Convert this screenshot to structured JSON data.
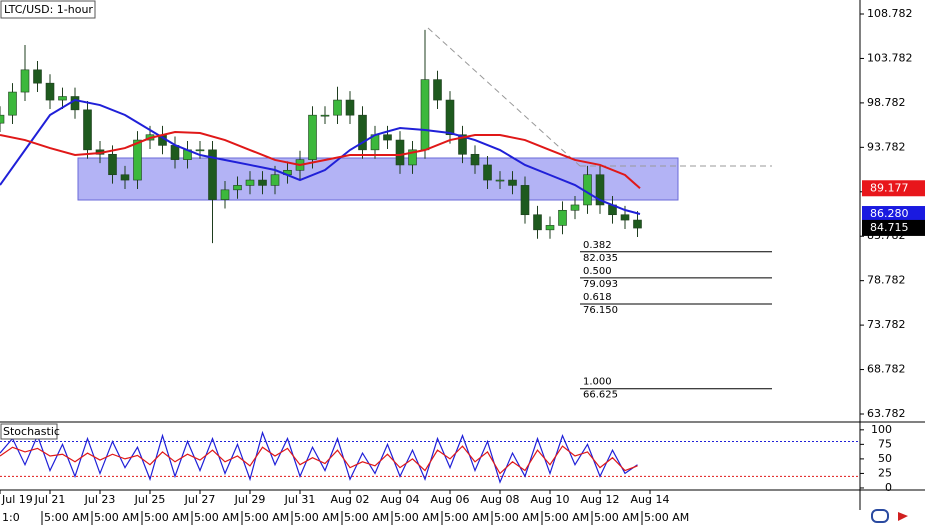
{
  "chart_data": {
    "type": "candlestick",
    "title": "LTC/USD: 1-hour",
    "x": [
      0,
      0.5,
      1,
      1.5,
      2,
      2.5,
      3,
      3.5,
      4,
      4.5,
      5,
      5.5,
      6,
      6.5,
      7,
      7.5,
      8,
      8.5,
      9,
      9.5,
      10,
      10.5,
      11,
      11.5,
      12,
      12.5,
      13,
      13.5,
      14,
      14.5,
      15,
      15.5,
      16,
      16.5,
      17,
      17.5,
      18,
      18.5,
      19,
      19.5,
      20,
      20.5,
      21,
      21.5,
      22,
      22.5,
      23,
      23.5,
      24,
      24.5,
      25,
      25.5
    ],
    "open": [
      96.5,
      97.4,
      100,
      102.5,
      101,
      99.1,
      99.5,
      98,
      93.5,
      93,
      90.7,
      90.1,
      94.6,
      95.2,
      94,
      92.4,
      93.5,
      93.5,
      87.9,
      89,
      89.5,
      90.1,
      89.5,
      90.7,
      91.2,
      92.4,
      97.4,
      97.4,
      99.1,
      97.4,
      93.5,
      95.2,
      94.6,
      91.8,
      93.5,
      101.4,
      99.1,
      95.2,
      93,
      91.8,
      90.1,
      90.1,
      89.5,
      86.2,
      84.5,
      85,
      86.7,
      87.3,
      90.7,
      87.3,
      86.2,
      85.6
    ],
    "high": [
      98.4,
      101,
      105.3,
      103.5,
      102,
      100.5,
      100.5,
      99,
      94.5,
      94,
      91.7,
      95.6,
      96.2,
      96.2,
      95,
      94.5,
      94.5,
      94.5,
      90,
      90.5,
      91.1,
      91.1,
      91.7,
      92.2,
      93.4,
      98.4,
      98.4,
      100.6,
      100.1,
      98.4,
      96.2,
      96.2,
      95.6,
      94.5,
      107,
      102.4,
      100.1,
      96.2,
      94,
      92.8,
      91.1,
      91.1,
      90.5,
      87.2,
      86,
      87.7,
      88.3,
      91.7,
      91.7,
      88.3,
      87.2,
      86.6
    ],
    "low": [
      95.5,
      96.4,
      99,
      100,
      98.1,
      98.1,
      97,
      92.5,
      92,
      89.7,
      89.1,
      89.1,
      93.6,
      93,
      91.4,
      91.4,
      92.5,
      83,
      86.9,
      88,
      88.5,
      88.5,
      88.5,
      89.7,
      90.2,
      91.4,
      96.4,
      96.4,
      96.4,
      92.5,
      92.5,
      93.6,
      90.8,
      90.8,
      92.5,
      98.1,
      94.2,
      92,
      90.8,
      89.1,
      89.1,
      88.5,
      85.2,
      83.5,
      83.5,
      84,
      85.7,
      86.3,
      86.3,
      85.2,
      84.6,
      83.7
    ],
    "close": [
      97.4,
      100,
      102.5,
      101,
      99.1,
      99.5,
      98,
      93.5,
      93,
      90.7,
      90.1,
      94.6,
      95.2,
      94,
      92.4,
      93.5,
      93.5,
      87.9,
      89,
      89.5,
      90.1,
      89.5,
      90.7,
      91.2,
      92.4,
      97.4,
      97.4,
      99.1,
      97.4,
      93.5,
      95.2,
      94.6,
      91.8,
      93.5,
      101.4,
      99.1,
      95.2,
      93,
      91.8,
      90.1,
      90.1,
      89.5,
      86.2,
      84.5,
      85,
      86.7,
      87.3,
      90.7,
      87.3,
      86.2,
      85.6,
      84.7
    ],
    "up_color": "#3cb83c",
    "down_color": "#1e5a1e",
    "moving_averages": [
      {
        "color": "#2020d8",
        "x": [
          0,
          1,
          2,
          3,
          4,
          5,
          6,
          7,
          8,
          9,
          10,
          11,
          12,
          13,
          14,
          15,
          16,
          17,
          18,
          19,
          20,
          21,
          22,
          23,
          24,
          25,
          25.6
        ],
        "values": [
          89.54,
          93.48,
          97.42,
          99.1,
          98.54,
          97.42,
          95.73,
          94.04,
          92.92,
          92.36,
          91.8,
          91.23,
          90.1,
          91.23,
          93.48,
          95.17,
          95.95,
          95.73,
          95.39,
          94.6,
          93.48,
          91.8,
          90.67,
          89.54,
          87.85,
          86.73,
          86.28
        ]
      },
      {
        "color": "#e01818",
        "x": [
          0,
          1,
          2,
          3,
          4,
          5,
          6,
          7,
          8,
          9,
          10,
          11,
          12,
          13,
          14,
          15,
          16,
          17,
          18,
          19,
          20,
          21,
          22,
          23,
          24,
          25,
          25.6
        ],
        "values": [
          95.17,
          94.6,
          93.7,
          92.92,
          93.14,
          93.7,
          94.83,
          95.5,
          95.39,
          94.6,
          93.48,
          92.36,
          91.8,
          92.36,
          92.92,
          92.92,
          92.92,
          93.48,
          94.6,
          95.17,
          95.17,
          94.6,
          93.48,
          92.36,
          91.8,
          90.67,
          89.177
        ]
      }
    ],
    "xlim": [
      0,
      34.4
    ],
    "ylim": [
      62.882,
      110.357
    ],
    "yticks": [
      108.782,
      103.782,
      98.782,
      93.782,
      88.782,
      83.782,
      78.782,
      73.782,
      68.782,
      63.782
    ],
    "price_markers": [
      {
        "value": 89.177,
        "color": "#e8161b"
      },
      {
        "value": 86.28,
        "label": "86.280",
        "color": "#1a1ae0"
      },
      {
        "value": 84.715,
        "color": "#000000"
      }
    ],
    "fib_levels": [
      {
        "ratio": 0.382,
        "price": 82.035
      },
      {
        "ratio": {
          "value": 0.5,
          "label": "0.500"
        },
        "price": 79.093
      },
      {
        "ratio": 0.618,
        "price": {
          "value": 76.15,
          "label": "76.150"
        }
      },
      {
        "ratio": {
          "value": 1,
          "label": "1.000"
        },
        "price": 66.625
      }
    ],
    "xticks": [
      {
        "value": 0,
        "label": "Jul 19"
      },
      {
        "value": 2,
        "label": "Jul 21"
      },
      {
        "value": 4,
        "label": "Jul 23"
      },
      {
        "value": 6,
        "label": "Jul 25"
      },
      {
        "value": 8,
        "label": "Jul 27"
      },
      {
        "value": 10,
        "label": "Jul 29"
      },
      {
        "value": 12,
        "label": "Jul 31"
      },
      {
        "value": 14,
        "label": "Aug 02"
      },
      {
        "value": 16,
        "label": "Aug 04"
      },
      {
        "value": 18,
        "label": "Aug 06"
      },
      {
        "value": 20,
        "label": "Aug 08"
      },
      {
        "value": 22,
        "label": "Aug 10"
      },
      {
        "value": 24,
        "label": "Aug 12"
      },
      {
        "value": 26,
        "label": "Aug 14"
      }
    ],
    "time_labels": [
      "1:0",
      "5:00 AM",
      "5:00 AM",
      "5:00 AM",
      "5:00 AM",
      "5:00 AM",
      "5:00 AM",
      "5:00 AM",
      "5:00 AM",
      "5:00 AM",
      "5:00 AM",
      "5:00 AM",
      "5:00 AM",
      "5:00 AM"
    ],
    "stochastic": {
      "title": "Stochastic",
      "ylim": [
        -3.5,
        110
      ],
      "yticks": [
        100,
        75,
        50,
        25,
        0
      ],
      "levels": [
        {
          "value": 80,
          "color": "#2020d8"
        },
        {
          "value": 20,
          "color": "#e01818"
        }
      ],
      "series": [
        {
          "color": "#2020d8",
          "values": [
            60,
            85,
            40,
            90,
            30,
            75,
            20,
            85,
            25,
            80,
            35,
            70,
            15,
            90,
            20,
            80,
            30,
            85,
            25,
            75,
            15,
            95,
            40,
            85,
            20,
            70,
            30,
            85,
            15,
            60,
            25,
            75,
            20,
            65,
            15,
            85,
            35,
            90,
            30,
            80,
            10,
            60,
            20,
            85,
            25,
            90,
            40,
            75,
            20,
            65,
            25,
            40
          ]
        },
        {
          "color": "#e01818",
          "values": [
            55,
            70,
            62,
            68,
            55,
            58,
            45,
            60,
            48,
            58,
            50,
            56,
            40,
            62,
            45,
            58,
            48,
            65,
            45,
            55,
            38,
            70,
            55,
            68,
            40,
            52,
            42,
            65,
            35,
            45,
            38,
            58,
            35,
            50,
            30,
            65,
            50,
            72,
            45,
            62,
            25,
            45,
            30,
            65,
            40,
            72,
            55,
            62,
            35,
            52,
            30,
            38
          ]
        }
      ]
    }
  }
}
